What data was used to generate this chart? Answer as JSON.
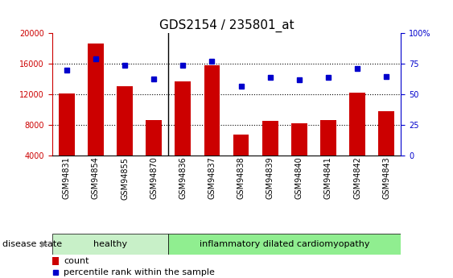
{
  "title": "GDS2154 / 235801_at",
  "samples": [
    "GSM94831",
    "GSM94854",
    "GSM94855",
    "GSM94870",
    "GSM94836",
    "GSM94837",
    "GSM94838",
    "GSM94839",
    "GSM94840",
    "GSM94841",
    "GSM94842",
    "GSM94843"
  ],
  "counts": [
    12100,
    18700,
    13100,
    8700,
    13700,
    15800,
    6800,
    8600,
    8200,
    8700,
    12200,
    9800
  ],
  "percentiles": [
    70,
    79,
    74,
    63,
    74,
    77,
    57,
    64,
    62,
    64,
    71,
    65
  ],
  "ylim_left": [
    4000,
    20000
  ],
  "ylim_right": [
    0,
    100
  ],
  "yticks_left": [
    4000,
    8000,
    12000,
    16000,
    20000
  ],
  "yticks_right": [
    0,
    25,
    50,
    75,
    100
  ],
  "bar_color": "#cc0000",
  "dot_color": "#0000cc",
  "healthy_samples": 4,
  "disease_groups": [
    {
      "label": "healthy",
      "color": "#c8f0c8"
    },
    {
      "label": "inflammatory dilated cardiomyopathy",
      "color": "#90ee90"
    }
  ],
  "disease_state_label": "disease state",
  "legend_count_label": "count",
  "legend_pct_label": "percentile rank within the sample",
  "grid_color": "#000000",
  "background_color": "#ffffff",
  "right_axis_color": "#0000cc",
  "left_axis_color": "#cc0000",
  "title_fontsize": 11,
  "tick_fontsize": 7,
  "label_fontsize": 8
}
